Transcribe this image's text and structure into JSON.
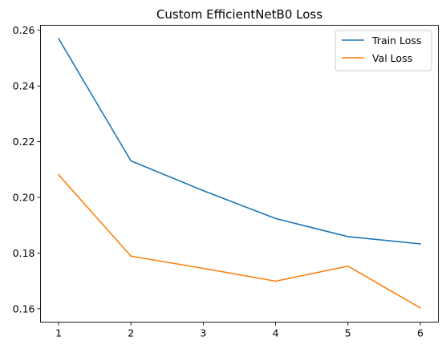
{
  "chart_data": {
    "type": "line",
    "title": "Custom EfficientNetB0 Loss",
    "xlabel": "",
    "ylabel": "",
    "x": [
      1,
      2,
      3,
      4,
      5,
      6
    ],
    "xticks": [
      "1",
      "2",
      "3",
      "4",
      "5",
      "6"
    ],
    "yticks": [
      "0.16",
      "0.18",
      "0.20",
      "0.22",
      "0.24",
      "0.26"
    ],
    "xlim": [
      0.75,
      6.25
    ],
    "ylim": [
      0.1552,
      0.2618
    ],
    "grid": false,
    "legend_position": "top-right",
    "series": [
      {
        "name": "Train Loss",
        "color": "#1f77b4",
        "values": [
          0.257,
          0.2131,
          0.2024,
          0.1924,
          0.1859,
          0.1833
        ]
      },
      {
        "name": "Val Loss",
        "color": "#ff7f0e",
        "values": [
          0.2081,
          0.1789,
          0.1745,
          0.1699,
          0.1753,
          0.1603
        ]
      }
    ]
  }
}
